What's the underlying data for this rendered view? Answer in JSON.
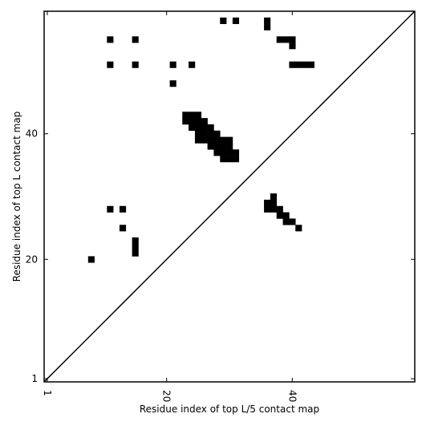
{
  "chart_data": {
    "type": "heatmap",
    "title": "",
    "xlabel": "Residue index of top L/5 contact map",
    "ylabel": "Residue index of top L contact map",
    "xlim": [
      0.5,
      59.5
    ],
    "ylim": [
      0.5,
      59.5
    ],
    "x_ticks": [
      1,
      20,
      40
    ],
    "y_ticks": [
      1,
      20,
      40
    ],
    "diagonal": true,
    "grid": false,
    "cell_color": "#000000",
    "background_color": "#ffffff",
    "contacts": [
      [
        29,
        58
      ],
      [
        31,
        58
      ],
      [
        36,
        58
      ],
      [
        36,
        57
      ],
      [
        11,
        55
      ],
      [
        15,
        55
      ],
      [
        38,
        55
      ],
      [
        39,
        55
      ],
      [
        40,
        55
      ],
      [
        40,
        54
      ],
      [
        11,
        51
      ],
      [
        15,
        51
      ],
      [
        21,
        51
      ],
      [
        24,
        51
      ],
      [
        40,
        51
      ],
      [
        41,
        51
      ],
      [
        42,
        51
      ],
      [
        43,
        51
      ],
      [
        21,
        48
      ],
      [
        23,
        43
      ],
      [
        24,
        43
      ],
      [
        25,
        43
      ],
      [
        23,
        42
      ],
      [
        24,
        42
      ],
      [
        25,
        42
      ],
      [
        26,
        42
      ],
      [
        24,
        41
      ],
      [
        25,
        41
      ],
      [
        26,
        41
      ],
      [
        27,
        41
      ],
      [
        25,
        40
      ],
      [
        26,
        40
      ],
      [
        27,
        40
      ],
      [
        28,
        40
      ],
      [
        25,
        39
      ],
      [
        26,
        39
      ],
      [
        27,
        39
      ],
      [
        28,
        39
      ],
      [
        29,
        39
      ],
      [
        30,
        39
      ],
      [
        27,
        38
      ],
      [
        28,
        38
      ],
      [
        29,
        38
      ],
      [
        30,
        38
      ],
      [
        28,
        37
      ],
      [
        29,
        37
      ],
      [
        30,
        37
      ],
      [
        31,
        37
      ],
      [
        29,
        36
      ],
      [
        30,
        36
      ],
      [
        31,
        36
      ],
      [
        37,
        30
      ],
      [
        36,
        29
      ],
      [
        37,
        29
      ],
      [
        36,
        28
      ],
      [
        37,
        28
      ],
      [
        38,
        28
      ],
      [
        38,
        27
      ],
      [
        39,
        27
      ],
      [
        39,
        26
      ],
      [
        40,
        26
      ],
      [
        41,
        25
      ],
      [
        11,
        28
      ],
      [
        13,
        28
      ],
      [
        13,
        25
      ],
      [
        15,
        23
      ],
      [
        15,
        22
      ],
      [
        15,
        21
      ],
      [
        8,
        20
      ]
    ]
  }
}
